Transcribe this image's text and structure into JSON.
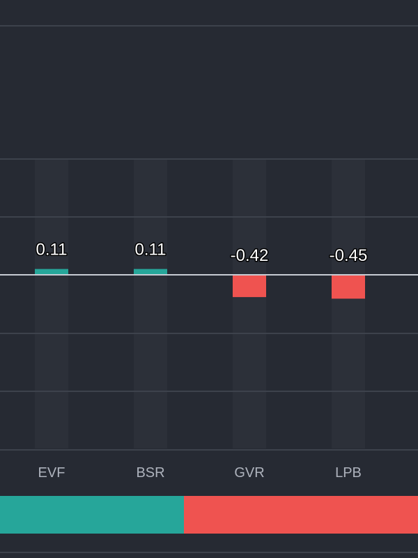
{
  "colors": {
    "background": "#262a33",
    "gridline": "#3d424c",
    "zero_line": "#c8ccd4",
    "column_band": "#2c3039",
    "positive": "#26a69a",
    "negative": "#ef5350",
    "value_text": "#ffffff",
    "category_text": "#aeb3bd"
  },
  "chart_data": {
    "type": "bar",
    "categories": [
      "EVF",
      "BSR",
      "GVR",
      "LPB"
    ],
    "values": [
      0.11,
      0.11,
      -0.42,
      -0.45
    ],
    "value_labels": [
      "0.11",
      "0.11",
      "-0.42",
      "-0.45"
    ],
    "grid": true,
    "legend": "none"
  },
  "summary_bar": {
    "positive_share": 0.44,
    "negative_share": 0.56
  }
}
